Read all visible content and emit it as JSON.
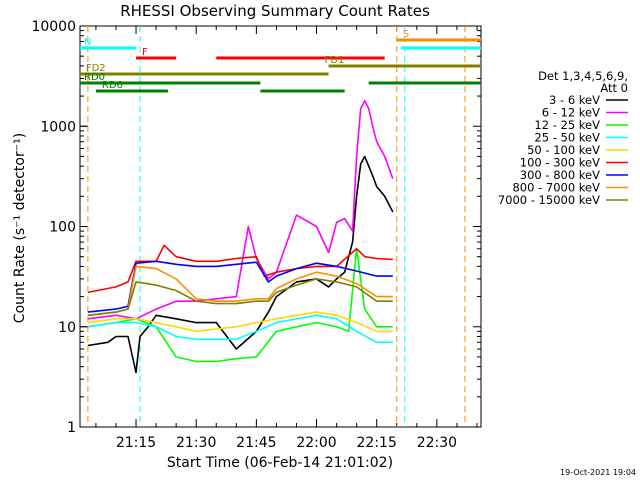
{
  "chart_data": {
    "type": "line",
    "title": "RHESSI Observing Summary Count Rates",
    "xlabel": "Start Time (06-Feb-14 21:01:02)",
    "ylabel": "Count Rate (s⁻¹ detector⁻¹)",
    "y_scale": "log",
    "ylim": [
      1,
      10000
    ],
    "xlim": [
      "21:01:02",
      "22:41:00"
    ],
    "x_ticks": [
      "21:15",
      "21:30",
      "21:45",
      "22:00",
      "22:15",
      "22:30"
    ],
    "y_ticks": [
      "1",
      "10",
      "100",
      "1000",
      "10000"
    ],
    "legend": {
      "title_lines": [
        "Det 1,3,4,5,6,9,",
        "Att 0"
      ],
      "placement": "right"
    },
    "timestamp": "19-Oct-2021 19:04",
    "series": [
      {
        "name": "3 - 6 keV",
        "color": "#000000",
        "x": [
          "21:03",
          "21:08",
          "21:10",
          "21:13",
          "21:15",
          "21:16",
          "21:18",
          "21:20",
          "21:25",
          "21:30",
          "21:35",
          "21:40",
          "21:45",
          "21:48",
          "21:50",
          "21:55",
          "22:00",
          "22:03",
          "22:05",
          "22:07",
          "22:09",
          "22:10",
          "22:11",
          "22:12",
          "22:13",
          "22:14",
          "22:15",
          "22:17",
          "22:19"
        ],
        "y": [
          6.5,
          7,
          8,
          8,
          3.5,
          8,
          10,
          13,
          12,
          11,
          11,
          6,
          9,
          14,
          20,
          28,
          30,
          25,
          30,
          35,
          70,
          200,
          420,
          500,
          400,
          320,
          250,
          200,
          140
        ]
      },
      {
        "name": "6 - 12 keV",
        "color": "#ff00ff",
        "x": [
          "21:03",
          "21:10",
          "21:15",
          "21:20",
          "21:25",
          "21:30",
          "21:35",
          "21:40",
          "21:43",
          "21:45",
          "21:48",
          "21:50",
          "21:55",
          "22:00",
          "22:03",
          "22:05",
          "22:07",
          "22:09",
          "22:10",
          "22:11",
          "22:12",
          "22:13",
          "22:14",
          "22:15",
          "22:17",
          "22:19"
        ],
        "y": [
          12,
          13,
          12,
          15,
          18,
          18,
          19,
          20,
          100,
          48,
          30,
          35,
          130,
          100,
          55,
          110,
          120,
          90,
          500,
          1500,
          1800,
          1500,
          1000,
          700,
          500,
          300
        ]
      },
      {
        "name": "12 - 25 keV",
        "color": "#00ff00",
        "x": [
          "21:03",
          "21:10",
          "21:15",
          "21:20",
          "21:25",
          "21:30",
          "21:35",
          "21:40",
          "21:45",
          "21:50",
          "21:55",
          "22:00",
          "22:05",
          "22:08",
          "22:10",
          "22:12",
          "22:15",
          "22:19"
        ],
        "y": [
          10,
          11,
          12,
          10,
          5,
          4.5,
          4.5,
          4.8,
          5,
          9,
          10,
          11,
          10,
          9,
          60,
          15,
          10,
          10
        ]
      },
      {
        "name": "25 - 50 keV",
        "color": "#00ffff",
        "x": [
          "21:03",
          "21:10",
          "21:15",
          "21:20",
          "21:25",
          "21:30",
          "21:35",
          "21:40",
          "21:45",
          "21:50",
          "21:55",
          "22:00",
          "22:05",
          "22:10",
          "22:15",
          "22:19"
        ],
        "y": [
          10,
          11,
          11,
          10,
          8,
          7.5,
          7.5,
          7.5,
          9,
          11,
          12,
          13,
          12,
          9,
          7,
          7
        ]
      },
      {
        "name": "50 - 100 keV",
        "color": "#ffd700",
        "x": [
          "21:03",
          "21:10",
          "21:15",
          "21:20",
          "21:25",
          "21:30",
          "21:35",
          "21:40",
          "21:45",
          "21:50",
          "21:55",
          "22:00",
          "22:05",
          "22:10",
          "22:15",
          "22:19"
        ],
        "y": [
          11,
          12,
          12,
          11,
          10,
          9,
          9.5,
          10,
          11,
          12,
          13,
          14,
          13,
          11,
          9,
          9
        ]
      },
      {
        "name": "100 - 300 keV",
        "color": "#ff0000",
        "x": [
          "21:03",
          "21:10",
          "21:13",
          "21:15",
          "21:20",
          "21:22",
          "21:25",
          "21:30",
          "21:35",
          "21:40",
          "21:45",
          "21:47",
          "21:50",
          "21:55",
          "22:00",
          "22:05",
          "22:10",
          "22:12",
          "22:15",
          "22:19"
        ],
        "y": [
          22,
          25,
          28,
          45,
          45,
          65,
          50,
          45,
          45,
          48,
          50,
          32,
          35,
          38,
          40,
          40,
          60,
          50,
          48,
          47
        ]
      },
      {
        "name": "300 - 800 keV",
        "color": "#0000ff",
        "x": [
          "21:03",
          "21:10",
          "21:13",
          "21:15",
          "21:20",
          "21:25",
          "21:30",
          "21:35",
          "21:40",
          "21:45",
          "21:48",
          "21:50",
          "21:55",
          "22:00",
          "22:05",
          "22:10",
          "22:15",
          "22:19"
        ],
        "y": [
          14,
          15,
          16,
          43,
          45,
          42,
          40,
          40,
          42,
          44,
          28,
          32,
          38,
          43,
          40,
          36,
          32,
          32
        ]
      },
      {
        "name": "800 - 7000 keV",
        "color": "#ff8c00",
        "x": [
          "21:03",
          "21:10",
          "21:13",
          "21:15",
          "21:20",
          "21:25",
          "21:30",
          "21:35",
          "21:40",
          "21:45",
          "21:48",
          "21:50",
          "21:55",
          "22:00",
          "22:05",
          "22:10",
          "22:15",
          "22:19"
        ],
        "y": [
          13,
          14,
          15,
          40,
          38,
          30,
          19,
          18,
          18,
          19,
          19,
          24,
          30,
          35,
          32,
          27,
          20,
          20
        ]
      },
      {
        "name": "7000 - 15000 keV",
        "color": "#808000",
        "x": [
          "21:03",
          "21:10",
          "21:13",
          "21:15",
          "21:20",
          "21:25",
          "21:30",
          "21:35",
          "21:40",
          "21:45",
          "21:48",
          "21:50",
          "21:55",
          "22:00",
          "22:05",
          "22:10",
          "22:15",
          "22:19"
        ],
        "y": [
          13,
          14,
          15,
          28,
          26,
          23,
          18,
          17,
          17,
          18,
          18,
          22,
          26,
          30,
          28,
          25,
          18,
          18
        ]
      }
    ],
    "flag_bars": [
      {
        "label": "S",
        "color": "#ff8c00",
        "segments": [
          [
            "22:20",
            "22:41"
          ]
        ]
      },
      {
        "label": "N",
        "color": "#00ffff",
        "segments": [
          [
            "21:01",
            "21:15"
          ],
          [
            "22:21",
            "22:41"
          ]
        ]
      },
      {
        "label": "F",
        "color": "#ff0000",
        "segments": [
          [
            "21:15",
            "21:25"
          ],
          [
            "21:35",
            "22:17"
          ]
        ]
      },
      {
        "label": "FD1",
        "color": "#808000",
        "segments": [
          [
            "22:03",
            "22:41"
          ]
        ]
      },
      {
        "label": "FD2",
        "color": "#808000",
        "segments": [
          [
            "21:01",
            "22:03"
          ]
        ]
      },
      {
        "label": "RD0",
        "color": "#008000",
        "segments": [
          [
            "21:01",
            "21:46"
          ],
          [
            "22:13",
            "22:41"
          ]
        ]
      },
      {
        "label": "RD6",
        "color": "#008000",
        "segments": [
          [
            "21:05",
            "21:23"
          ],
          [
            "21:46",
            "22:07"
          ]
        ]
      }
    ],
    "vlines": [
      {
        "color": "#ff8c00",
        "time": "21:03"
      },
      {
        "color": "#00ffff",
        "time": "21:16"
      },
      {
        "color": "#ff8c00",
        "time": "22:20"
      },
      {
        "color": "#00ffff",
        "time": "22:22"
      },
      {
        "color": "#ff8c00",
        "time": "22:37"
      }
    ]
  }
}
